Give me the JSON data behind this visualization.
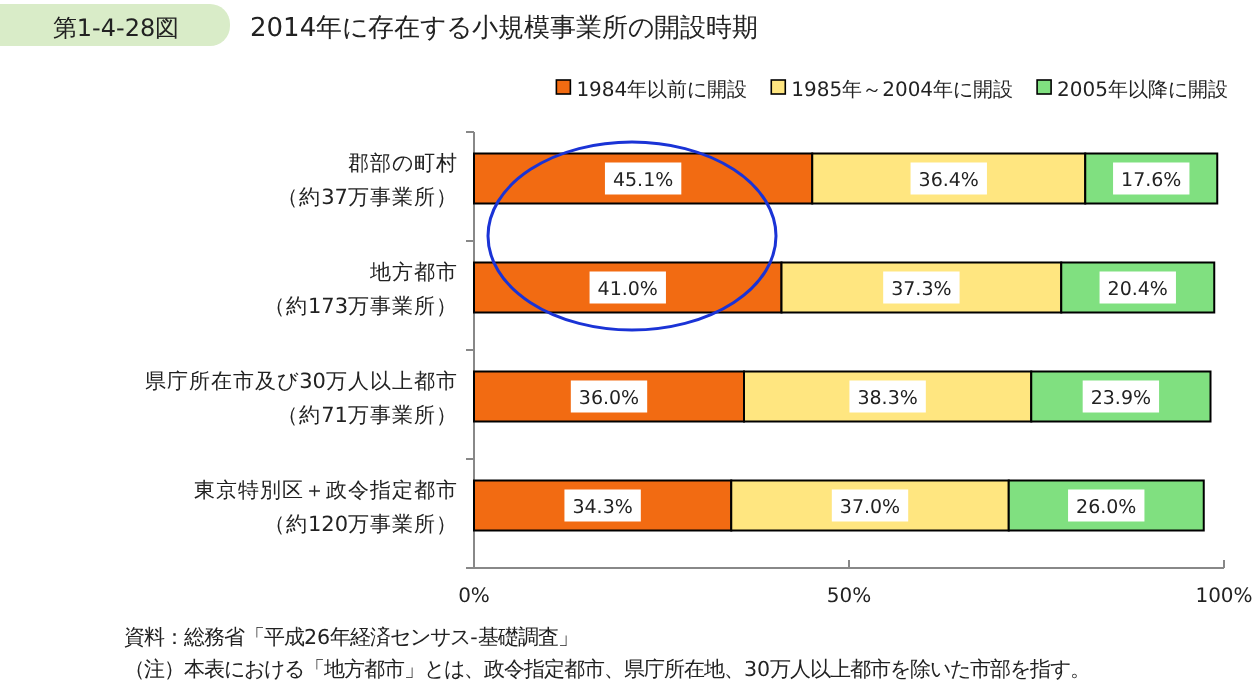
{
  "chart_data": {
    "type": "bar",
    "orientation": "horizontal",
    "stacked": true,
    "title": "2014年に存在する小規模事業所の開設時期",
    "categories": [
      "郡部の町村（約37万事業所）",
      "地方都市（約173万事業所）",
      "県庁所在市及び30万人以上都市（約71万事業所）",
      "東京特別区＋政令指定都市（約120万事業所）"
    ],
    "series": [
      {
        "name": "1984年以前に開設",
        "color": "#f26b12",
        "values": [
          45.1,
          41.0,
          36.0,
          34.3
        ]
      },
      {
        "name": "1985年～2004年に開設",
        "color": "#ffe680",
        "values": [
          36.4,
          37.3,
          38.3,
          37.0
        ]
      },
      {
        "name": "2005年以降に開設",
        "color": "#80e080",
        "values": [
          17.6,
          20.4,
          23.9,
          26.0
        ]
      }
    ],
    "value_labels": [
      [
        "45.1%",
        "41.0%",
        "36.0%",
        "34.3%"
      ],
      [
        "36.4%",
        "37.3%",
        "38.3%",
        "37.0%"
      ],
      [
        "17.6%",
        "20.4%",
        "23.9%",
        "26.0%"
      ]
    ],
    "xlim": [
      0,
      100
    ],
    "xticks": [
      {
        "value": 0,
        "label": "0%"
      },
      {
        "value": 50,
        "label": "50%"
      },
      {
        "value": 100,
        "label": "100%"
      }
    ],
    "legend": "top right",
    "grid": false,
    "annotations": [
      "第1-4-28図",
      "資料：総務省「平成26年経済センサス‐基礎調査」",
      "（注）本表における「地方都市」とは、政令指定都市、県庁所在地、30万人以上都市を除いた市部を指す。"
    ]
  }
}
